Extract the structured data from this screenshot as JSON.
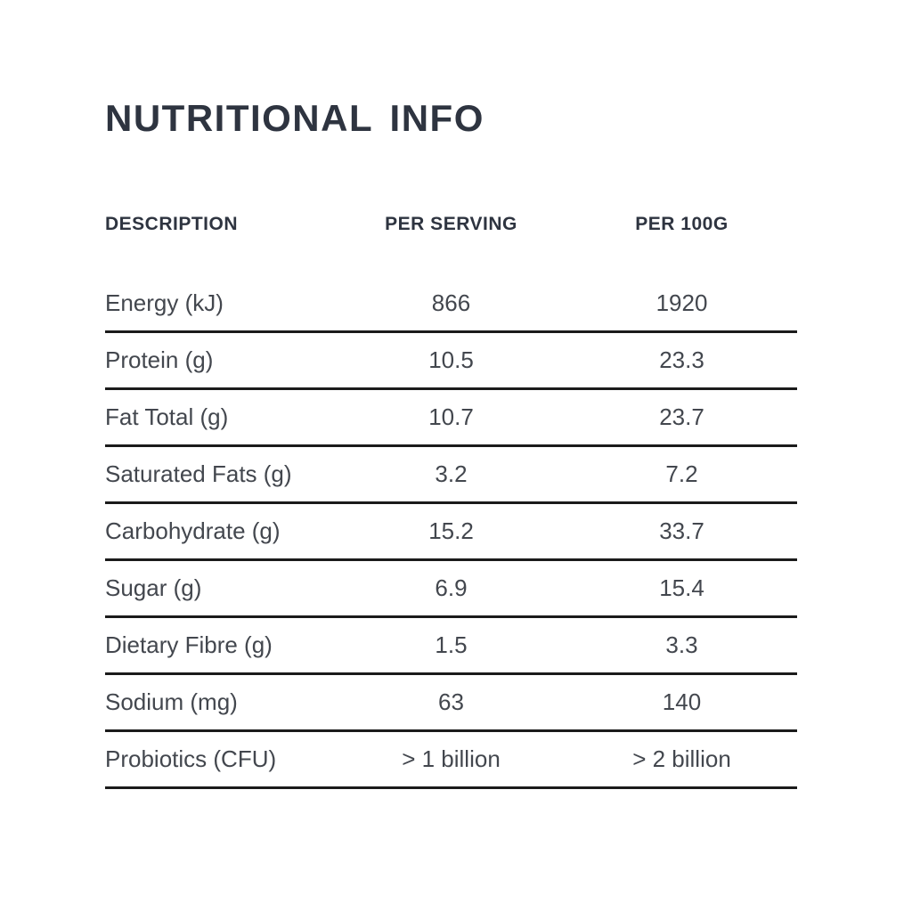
{
  "page": {
    "title": "NUTRITIONAL INFO"
  },
  "table": {
    "columns": [
      "DESCRIPTION",
      "PER SERVING",
      "PER 100G"
    ],
    "rows": [
      {
        "description": "Energy (kJ)",
        "per_serving": "866",
        "per_100g": "1920"
      },
      {
        "description": "Protein (g)",
        "per_serving": "10.5",
        "per_100g": "23.3"
      },
      {
        "description": "Fat Total (g)",
        "per_serving": "10.7",
        "per_100g": "23.7"
      },
      {
        "description": "Saturated Fats (g)",
        "per_serving": "3.2",
        "per_100g": "7.2"
      },
      {
        "description": "Carbohydrate (g)",
        "per_serving": "15.2",
        "per_100g": "33.7"
      },
      {
        "description": "Sugar (g)",
        "per_serving": "6.9",
        "per_100g": "15.4"
      },
      {
        "description": "Dietary Fibre (g)",
        "per_serving": "1.5",
        "per_100g": "3.3"
      },
      {
        "description": "Sodium (mg)",
        "per_serving": "63",
        "per_100g": "140"
      },
      {
        "description": "Probiotics (CFU)",
        "per_serving": "> 1 billion",
        "per_100g": "> 2 billion"
      }
    ]
  },
  "colors": {
    "background": "#ffffff",
    "title": "#2e3440",
    "header": "#2e3440",
    "text": "#43474e",
    "rule": "#1b1b1b"
  }
}
